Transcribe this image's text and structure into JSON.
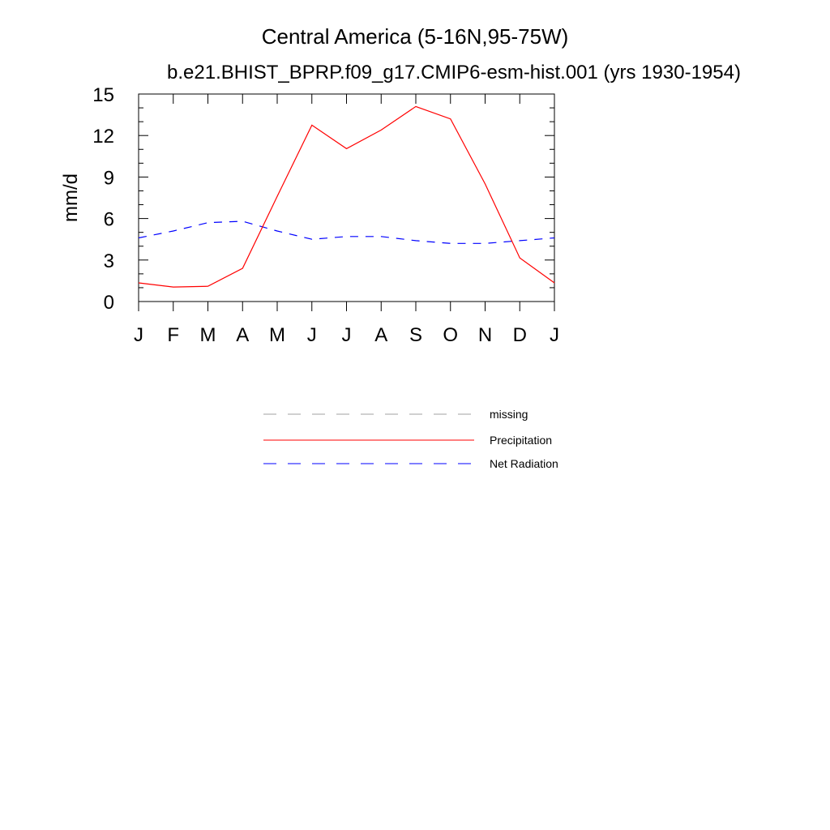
{
  "chart_data": {
    "type": "line",
    "title": "Central America (5-16N,95-75W)",
    "subtitle": "b.e21.BHIST_BPRP.f09_g17.CMIP6-esm-hist.001 (yrs 1930-1954)",
    "xlabel": "",
    "ylabel": "mm/d",
    "categories": [
      "J",
      "F",
      "M",
      "A",
      "M",
      "J",
      "J",
      "A",
      "S",
      "O",
      "N",
      "D",
      "J"
    ],
    "ylim": [
      0,
      15
    ],
    "yticks": [
      0,
      3,
      6,
      9,
      12,
      15
    ],
    "grid": false,
    "legend_position": "bottom-center",
    "legend_entries": [
      {
        "name": "missing",
        "values": [],
        "color": "#a0a0a0",
        "style": "dashed"
      }
    ],
    "series": [
      {
        "name": "Net Radiation",
        "color": "#0000ff",
        "style": "dashed",
        "values": [
          4.6,
          5.1,
          5.7,
          5.8,
          5.1,
          4.5,
          4.7,
          4.7,
          4.4,
          4.2,
          4.2,
          4.4,
          4.6
        ]
      },
      {
        "name": "Precipitation",
        "color": "#ff0000",
        "style": "solid",
        "values": [
          1.35,
          1.05,
          1.1,
          2.4,
          7.6,
          12.75,
          11.05,
          12.4,
          14.1,
          13.2,
          8.5,
          3.15,
          1.35
        ]
      }
    ]
  }
}
